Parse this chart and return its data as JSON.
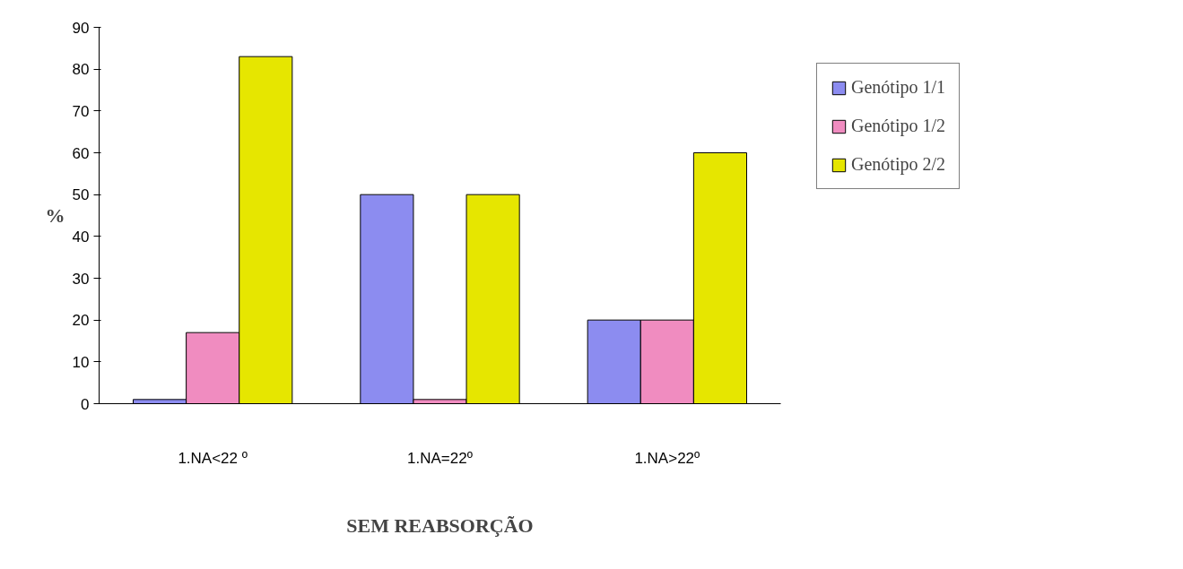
{
  "chart_data": {
    "type": "bar",
    "xlabel": "SEM REABSORÇÃO",
    "ylabel": "%",
    "categories": [
      "1.NA<22 º",
      "1.NA=22º",
      "1.NA>22º"
    ],
    "series": [
      {
        "name": "Genótipo 1/1",
        "color": "#8c8cf0",
        "values": [
          1,
          50,
          20
        ]
      },
      {
        "name": "Genótipo 1/2",
        "color": "#f08cc0",
        "values": [
          17,
          1,
          20
        ]
      },
      {
        "name": "Genótipo 2/2",
        "color": "#e6e600",
        "values": [
          83,
          50,
          60
        ]
      }
    ],
    "ylim": [
      0,
      90
    ],
    "yticks": [
      0,
      10,
      20,
      30,
      40,
      50,
      60,
      70,
      80,
      90
    ],
    "grid": false,
    "legend": "top right"
  }
}
